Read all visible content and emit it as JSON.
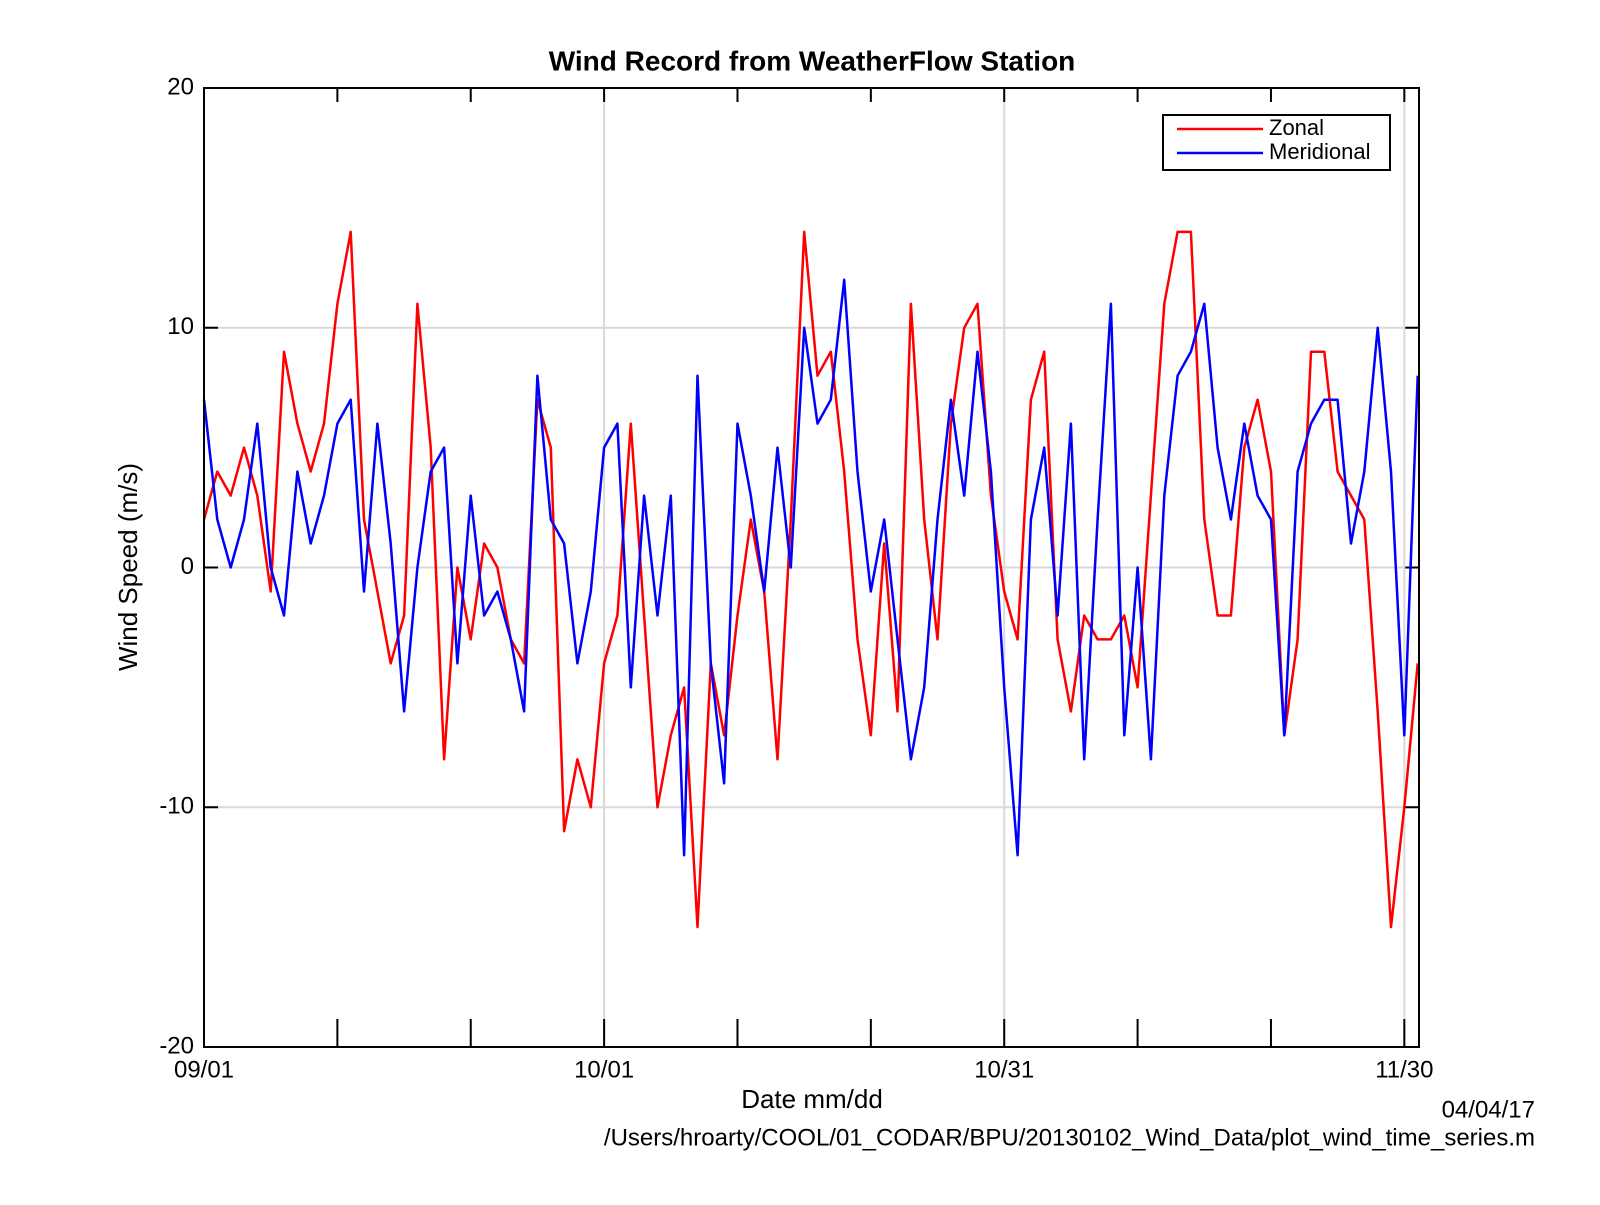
{
  "chart_data": {
    "type": "line",
    "title": "Wind Record from WeatherFlow Station",
    "x_label": "Date mm/dd",
    "y_label": "Wind Speed (m/s)",
    "footer_date": "04/04/17",
    "footer_path": "/Users/hroarty/COOL/01_CODAR/BPU/20130102_Wind_Data/plot_wind_time_series.m",
    "x": [
      0,
      1,
      2,
      3,
      4,
      5,
      6,
      7,
      8,
      9,
      10,
      11,
      12,
      13,
      14,
      15,
      16,
      17,
      18,
      19,
      20,
      21,
      22,
      23,
      24,
      25,
      26,
      27,
      28,
      29,
      30,
      31,
      32,
      33,
      34,
      35,
      36,
      37,
      38,
      39,
      40,
      41,
      42,
      43,
      44,
      45,
      46,
      47,
      48,
      49,
      50,
      51,
      52,
      53,
      54,
      55,
      56,
      57,
      58,
      59,
      60,
      61,
      62,
      63,
      64,
      65,
      66,
      67,
      68,
      69,
      70,
      71,
      72,
      73,
      74,
      75,
      76,
      77,
      78,
      79,
      80,
      81,
      82,
      83,
      84,
      85,
      86,
      87,
      88,
      89,
      90,
      91
    ],
    "xlim": [
      0,
      91.1
    ],
    "xticks": [
      {
        "value": 0,
        "label": "09/01"
      },
      {
        "value": 30,
        "label": "10/01"
      },
      {
        "value": 60,
        "label": "10/31"
      },
      {
        "value": 90,
        "label": "11/30"
      }
    ],
    "xminorticks": [
      10,
      20,
      40,
      50,
      70,
      80
    ],
    "ylim": [
      -20,
      20
    ],
    "yticks": [
      -20,
      -10,
      0,
      10,
      20
    ],
    "grid": true,
    "legend": "upper right",
    "series": [
      {
        "name": "Zonal",
        "color": "#ff0000",
        "values": [
          2,
          4,
          3,
          5,
          3,
          -1,
          9,
          6,
          4,
          6,
          11,
          14,
          2,
          -1,
          -4,
          -2,
          11,
          5,
          -8,
          0,
          -3,
          1,
          0,
          -3,
          -4,
          7,
          5,
          -11,
          -8,
          -10,
          -4,
          -2,
          6,
          -2,
          -10,
          -7,
          -5,
          -15,
          -4,
          -7,
          -2,
          2,
          -1,
          -8,
          2,
          14,
          8,
          9,
          4,
          -3,
          -7,
          1,
          -6,
          11,
          2,
          -3,
          6,
          10,
          11,
          3,
          -1,
          -3,
          7,
          9,
          -3,
          -6,
          -2,
          -3,
          -3,
          -2,
          -5,
          3,
          11,
          14,
          14,
          2,
          -2,
          -2,
          5,
          7,
          4,
          -7,
          -3,
          9,
          9,
          4,
          3,
          2,
          -6,
          -15,
          -10,
          -4
        ]
      },
      {
        "name": "Meridional",
        "color": "#0000ff",
        "values": [
          7,
          2,
          0,
          2,
          6,
          0,
          -2,
          4,
          1,
          3,
          6,
          7,
          -1,
          6,
          1,
          -6,
          0,
          4,
          5,
          -4,
          3,
          -2,
          -1,
          -3,
          -6,
          8,
          2,
          1,
          -4,
          -1,
          5,
          6,
          -5,
          3,
          -2,
          3,
          -12,
          8,
          -4,
          -9,
          6,
          3,
          -1,
          5,
          0,
          10,
          6,
          7,
          12,
          4,
          -1,
          2,
          -3,
          -8,
          -5,
          2,
          7,
          3,
          9,
          4,
          -5,
          -12,
          2,
          5,
          -2,
          6,
          -8,
          2,
          11,
          -7,
          0,
          -8,
          3,
          8,
          9,
          11,
          5,
          2,
          6,
          3,
          2,
          -7,
          4,
          6,
          7,
          7,
          1,
          4,
          10,
          4,
          -7,
          8
        ]
      }
    ]
  }
}
